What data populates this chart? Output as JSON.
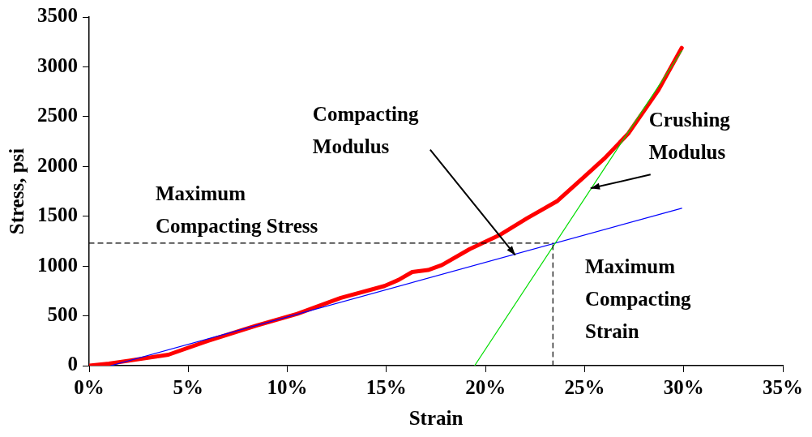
{
  "chart_data": {
    "type": "line",
    "xlabel": "Strain",
    "ylabel": "Stress, psi",
    "xlim": [
      0,
      35
    ],
    "xticks": [
      {
        "value": 0,
        "label": "0%"
      },
      {
        "value": 5,
        "label": "5%"
      },
      {
        "value": 10,
        "label": "10%"
      },
      {
        "value": 15,
        "label": "15%"
      },
      {
        "value": 20,
        "label": "20%"
      },
      {
        "value": 25,
        "label": "25%"
      },
      {
        "value": 30,
        "label": "30%"
      },
      {
        "value": 35,
        "label": "35%"
      }
    ],
    "ylim": [
      0,
      3500
    ],
    "yticks": [
      0,
      500,
      1000,
      1500,
      2000,
      2500,
      3000,
      3500
    ],
    "grid": false,
    "legend": false,
    "marker": "none",
    "line_style": "solid",
    "series": [
      {
        "color": "#ff0000",
        "x": [
          0,
          1,
          2,
          4,
          6,
          8.4,
          10.5,
          12.7,
          14.9,
          15.6,
          16.3,
          17.1,
          17.8,
          19.2,
          20.7,
          22.1,
          23.6,
          25,
          26,
          27.2,
          28.7,
          29.9
        ],
        "values": [
          0,
          20,
          50,
          110,
          250,
          400,
          520,
          680,
          800,
          860,
          940,
          960,
          1010,
          1170,
          1310,
          1480,
          1650,
          1900,
          2080,
          2330,
          2760,
          3190
        ]
      },
      {
        "color": "#0000ff",
        "x": [
          1.1,
          29.9
        ],
        "values": [
          0,
          1580
        ]
      },
      {
        "color": "#00dd00",
        "x": [
          19.45,
          29.9
        ],
        "values": [
          0,
          3160
        ]
      },
      {
        "color": "#000000",
        "line_style": "dashed",
        "x": [
          0,
          23.4
        ],
        "values": [
          1230,
          1230
        ]
      },
      {
        "color": "#000000",
        "line_style": "dashed",
        "x": [
          23.4,
          23.4
        ],
        "values": [
          0,
          1230
        ]
      }
    ],
    "annotations": [
      {
        "text": "Compacting\nModulus",
        "x": 21.5,
        "y": 1110
      },
      {
        "text": "Crushing\nModulus",
        "x": 25.3,
        "y": 1780
      },
      "Maximum\nCompacting Stress",
      "Maximum\nCompacting\nStrain"
    ]
  }
}
